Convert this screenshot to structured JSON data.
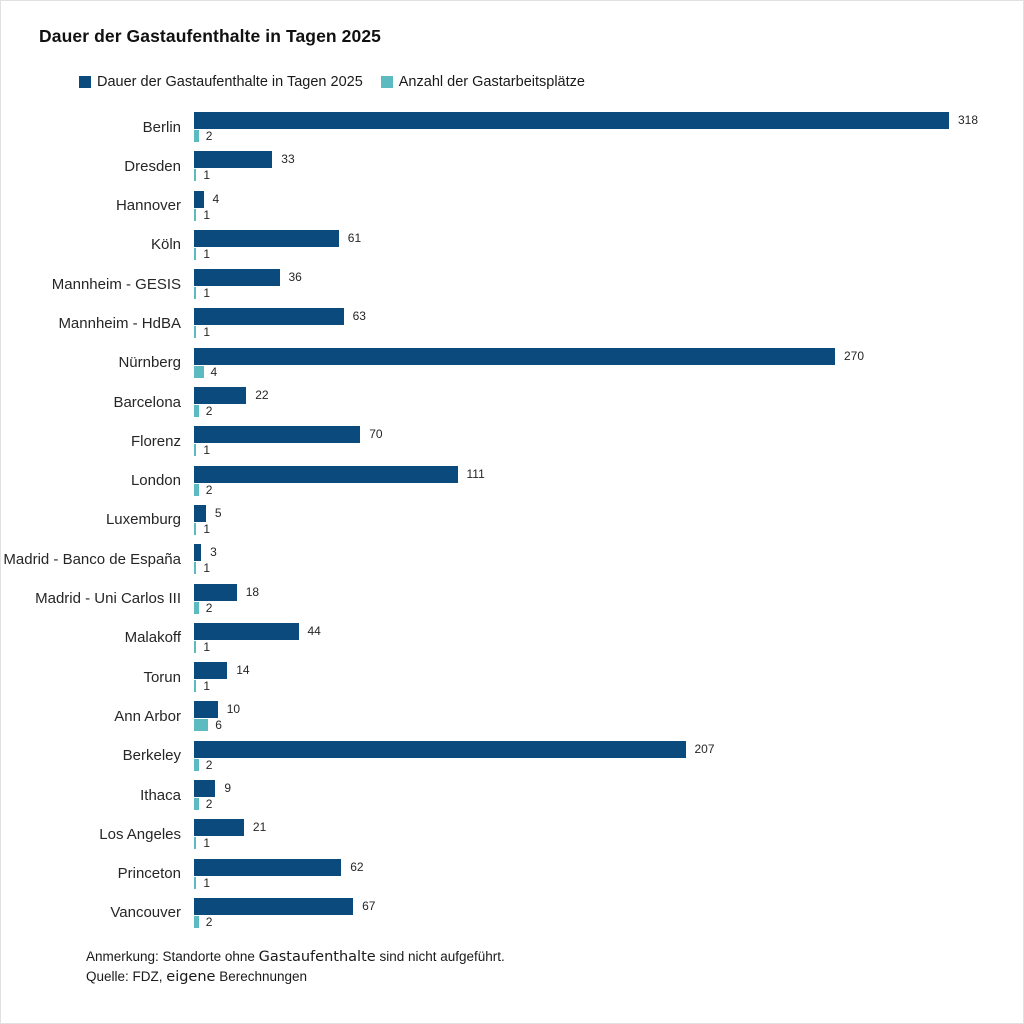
{
  "title": "Dauer der Gastaufenthalte in Tagen 2025",
  "chart_data": {
    "type": "bar",
    "orientation": "horizontal",
    "title": "Dauer der Gastaufenthalte in Tagen 2025",
    "categories": [
      "Berlin",
      "Dresden",
      "Hannover",
      "Köln",
      "Mannheim - GESIS",
      "Mannheim - HdBA",
      "Nürnberg",
      "Barcelona",
      "Florenz",
      "London",
      "Luxemburg",
      "Madrid - Banco de España",
      "Madrid - Uni Carlos III",
      "Malakoff",
      "Torun",
      "Ann Arbor",
      "Berkeley",
      "Ithaca",
      "Los Angeles",
      "Princeton",
      "Vancouver"
    ],
    "series": [
      {
        "name": "Dauer der Gastaufenthalte in Tagen 2025",
        "color": "#0b4a7d",
        "values": [
          318,
          33,
          4,
          61,
          36,
          63,
          270,
          22,
          70,
          111,
          5,
          3,
          18,
          44,
          14,
          10,
          207,
          9,
          21,
          62,
          67
        ]
      },
      {
        "name": "Anzahl der Gastarbeitsplätze",
        "color": "#5cbac1",
        "values": [
          2,
          1,
          1,
          1,
          1,
          1,
          4,
          2,
          1,
          2,
          1,
          1,
          2,
          1,
          1,
          6,
          2,
          2,
          1,
          1,
          2
        ]
      }
    ],
    "value_labels": true,
    "xlim": [
      0,
      318
    ],
    "grid": false,
    "axes_visible": false,
    "legend_position": "top-left"
  },
  "footer": {
    "note_parts": [
      "Anmerkung: Standorte ohne ",
      "Gastaufenthalte",
      " sind nicht aufgeführt."
    ],
    "source_parts": [
      "Quelle: FDZ, ",
      "eigene",
      " Berechnungen"
    ]
  },
  "colors": {
    "duration_bar": "#0b4a7d",
    "workplaces_bar": "#5cbac1",
    "text": "#262626",
    "background": "#ffffff",
    "border": "#e0e0e0"
  }
}
